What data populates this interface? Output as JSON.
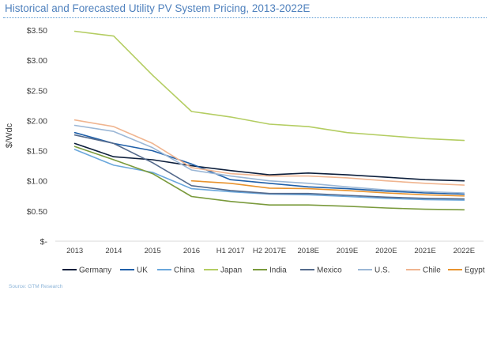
{
  "title": "Historical and Forecasted Utility PV System Pricing, 2013-2022E",
  "source": "Source: GTM Research",
  "chart_data": {
    "type": "line",
    "title": "Historical and Forecasted Utility PV System Pricing, 2013-2022E",
    "xlabel": "",
    "ylabel": "$/Wdc",
    "ylim": [
      0,
      3.5
    ],
    "yticks": [
      0,
      0.5,
      1.0,
      1.5,
      2.0,
      2.5,
      3.0,
      3.5
    ],
    "ytick_labels": [
      "$-",
      "$0.50",
      "$1.00",
      "$1.50",
      "$2.00",
      "$2.50",
      "$3.00",
      "$3.50"
    ],
    "categories": [
      "2013",
      "2014",
      "2015",
      "2016",
      "H1 2017",
      "H2 2017E",
      "2018E",
      "2019E",
      "2020E",
      "2021E",
      "2022E"
    ],
    "grid": false,
    "legend_position": "bottom",
    "series": [
      {
        "name": "Germany",
        "color": "#0d1f3c",
        "values": [
          1.62,
          1.4,
          1.35,
          1.25,
          1.17,
          1.1,
          1.13,
          1.1,
          1.06,
          1.02,
          1.0
        ]
      },
      {
        "name": "UK",
        "color": "#1f5fa8",
        "values": [
          1.8,
          1.62,
          1.5,
          1.28,
          1.02,
          0.96,
          0.9,
          0.87,
          0.83,
          0.8,
          0.78
        ]
      },
      {
        "name": "China",
        "color": "#6aa7dc",
        "values": [
          1.52,
          1.26,
          1.14,
          0.87,
          0.82,
          0.78,
          0.77,
          0.74,
          0.71,
          0.69,
          0.68
        ]
      },
      {
        "name": "Japan",
        "color": "#b4cd62",
        "values": [
          3.48,
          3.4,
          2.75,
          2.15,
          2.06,
          1.94,
          1.9,
          1.8,
          1.75,
          1.7,
          1.67
        ]
      },
      {
        "name": "India",
        "color": "#7a9a3c",
        "values": [
          1.57,
          1.35,
          1.12,
          0.74,
          0.66,
          0.6,
          0.6,
          0.58,
          0.55,
          0.53,
          0.52
        ]
      },
      {
        "name": "Mexico",
        "color": "#546a8c",
        "values": [
          1.76,
          1.62,
          1.3,
          0.92,
          0.84,
          0.79,
          0.79,
          0.76,
          0.73,
          0.71,
          0.7
        ]
      },
      {
        "name": "U.S.",
        "color": "#9bb7d6",
        "values": [
          1.92,
          1.82,
          1.55,
          1.18,
          1.08,
          1.0,
          0.96,
          0.9,
          0.85,
          0.82,
          0.8
        ]
      },
      {
        "name": "Chile",
        "color": "#f0b590",
        "values": [
          2.01,
          1.9,
          1.62,
          1.22,
          1.12,
          1.08,
          1.08,
          1.05,
          1.0,
          0.96,
          0.93
        ]
      },
      {
        "name": "Egypt",
        "color": "#e8932e",
        "values": [
          null,
          null,
          null,
          1.0,
          0.96,
          0.88,
          0.87,
          0.84,
          0.8,
          0.77,
          0.75
        ]
      }
    ]
  }
}
